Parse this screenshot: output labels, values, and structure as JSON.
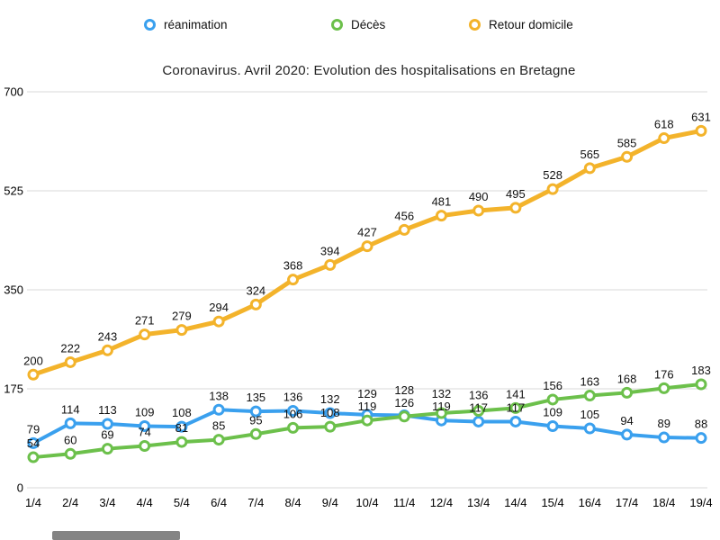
{
  "chart_data": {
    "type": "line",
    "title": "Coronavirus. Avril 2020: Evolution des hospitalisations en Bretagne",
    "categories": [
      "1/4",
      "2/4",
      "3/4",
      "4/4",
      "5/4",
      "6/4",
      "7/4",
      "8/4",
      "9/4",
      "10/4",
      "11/4",
      "12/4",
      "13/4",
      "14/4",
      "15/4",
      "16/4",
      "17/4",
      "18/4",
      "19/4"
    ],
    "series": [
      {
        "id": "reanimation",
        "name": "réanimation",
        "color": "#3AA0EE",
        "values": [
          79,
          114,
          113,
          109,
          108,
          138,
          135,
          136,
          132,
          129,
          128,
          119,
          117,
          117,
          109,
          105,
          94,
          89,
          88
        ]
      },
      {
        "id": "deces",
        "name": "Décès",
        "color": "#6CC04B",
        "values": [
          54,
          60,
          69,
          74,
          81,
          85,
          95,
          106,
          108,
          119,
          126,
          132,
          136,
          141,
          156,
          163,
          168,
          176,
          183
        ]
      },
      {
        "id": "retour-domicile",
        "name": "Retour domicile",
        "color": "#F3B32B",
        "values": [
          200,
          222,
          243,
          271,
          279,
          294,
          324,
          368,
          394,
          427,
          456,
          481,
          490,
          495,
          528,
          565,
          585,
          618,
          631
        ]
      }
    ],
    "xlabel": "",
    "ylabel": "",
    "ylim": [
      0,
      700
    ],
    "yticks": [
      0,
      175,
      350,
      525,
      700
    ],
    "grid": true,
    "legend_position": "top",
    "data_labels": true,
    "colors": {
      "gridline": "#d9d9d9",
      "data_label": "#111111",
      "axis_text": "#000000",
      "marker_fill": "#ffffff"
    }
  }
}
